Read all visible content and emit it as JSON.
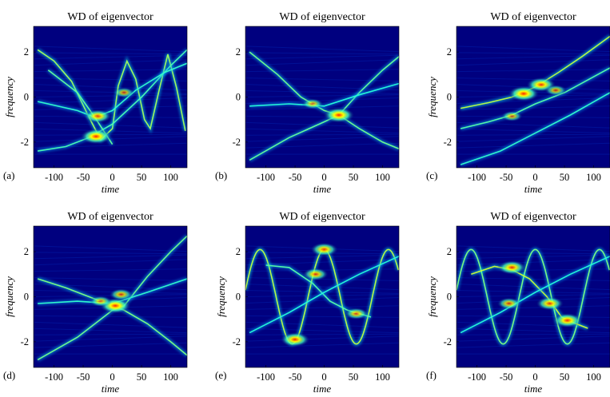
{
  "chart_data": [
    {
      "type": "heatmap",
      "panel_label": "(a)",
      "title": "WD of eigenvector",
      "xlabel": "time",
      "ylabel": "frequency",
      "xlim": [
        -135,
        128
      ],
      "ylim": [
        -3.14,
        3.14
      ],
      "xticks": [
        -100,
        -50,
        0,
        50,
        100
      ],
      "yticks": [
        2,
        0,
        -2
      ],
      "background": "#00007f",
      "curves": [
        {
          "kind": "line",
          "points": [
            [
              -128,
              2.1
            ],
            [
              -100,
              1.6
            ],
            [
              -70,
              0.7
            ],
            [
              -40,
              -0.9
            ],
            [
              -20,
              -1.9
            ],
            [
              0,
              -1.4
            ],
            [
              10,
              0.5
            ],
            [
              25,
              1.6
            ],
            [
              40,
              0.8
            ],
            [
              55,
              -1.0
            ],
            [
              65,
              -1.4
            ],
            [
              80,
              0.3
            ],
            [
              95,
              1.9
            ],
            [
              110,
              0.4
            ],
            [
              125,
              -1.5
            ]
          ],
          "intensity": 0.75
        },
        {
          "kind": "line",
          "points": [
            [
              -128,
              -2.4
            ],
            [
              -80,
              -2.2
            ],
            [
              -40,
              -1.8
            ],
            [
              0,
              -1.2
            ],
            [
              50,
              0.0
            ],
            [
              100,
              1.4
            ],
            [
              128,
              2.1
            ]
          ],
          "intensity": 0.4
        },
        {
          "kind": "line",
          "points": [
            [
              -128,
              -0.2
            ],
            [
              -60,
              -0.6
            ],
            [
              -30,
              -0.9
            ],
            [
              0,
              -0.6
            ],
            [
              40,
              0.3
            ],
            [
              90,
              1.1
            ],
            [
              128,
              1.5
            ]
          ],
          "intensity": 0.3
        },
        {
          "kind": "line",
          "points": [
            [
              -110,
              1.2
            ],
            [
              -60,
              0.2
            ],
            [
              -30,
              -0.9
            ],
            [
              0,
              -2.1
            ]
          ],
          "intensity": 0.5
        }
      ],
      "hotspots": [
        {
          "x": -28,
          "y": -1.75,
          "intensity": 1.0
        },
        {
          "x": -25,
          "y": -0.85,
          "intensity": 0.8
        },
        {
          "x": 20,
          "y": 0.2,
          "intensity": 0.45
        }
      ]
    },
    {
      "type": "heatmap",
      "panel_label": "(b)",
      "title": "WD of eigenvector",
      "xlabel": "time",
      "ylabel": "",
      "xlim": [
        -135,
        128
      ],
      "ylim": [
        -3.14,
        3.14
      ],
      "xticks": [
        -100,
        -50,
        0,
        50,
        100
      ],
      "yticks": [
        2,
        0,
        -2
      ],
      "background": "#00007f",
      "curves": [
        {
          "kind": "line",
          "points": [
            [
              -128,
              2.0
            ],
            [
              -80,
              1.0
            ],
            [
              -40,
              0.0
            ],
            [
              0,
              -0.6
            ],
            [
              25,
              -0.8
            ],
            [
              60,
              -1.4
            ],
            [
              100,
              -2.0
            ],
            [
              128,
              -2.3
            ]
          ],
          "intensity": 0.55
        },
        {
          "kind": "line",
          "points": [
            [
              -128,
              -2.8
            ],
            [
              -60,
              -1.8
            ],
            [
              0,
              -1.1
            ],
            [
              25,
              -0.8
            ],
            [
              60,
              0.2
            ],
            [
              100,
              1.2
            ],
            [
              128,
              1.8
            ]
          ],
          "intensity": 0.5
        },
        {
          "kind": "line",
          "points": [
            [
              -128,
              -0.4
            ],
            [
              -60,
              -0.3
            ],
            [
              0,
              -0.4
            ],
            [
              60,
              0.1
            ],
            [
              128,
              0.6
            ]
          ],
          "intensity": 0.25
        }
      ],
      "hotspots": [
        {
          "x": 25,
          "y": -0.8,
          "intensity": 1.0
        },
        {
          "x": -20,
          "y": -0.3,
          "intensity": 0.45
        }
      ]
    },
    {
      "type": "heatmap",
      "panel_label": "(c)",
      "title": "WD of eigenvector",
      "xlabel": "time",
      "ylabel": "frequency",
      "xlim": [
        -135,
        128
      ],
      "ylim": [
        -3.14,
        3.14
      ],
      "xticks": [
        -100,
        -50,
        0,
        50,
        100
      ],
      "yticks": [
        2,
        0,
        -2
      ],
      "background": "#00007f",
      "curves": [
        {
          "kind": "line",
          "points": [
            [
              -128,
              -0.5
            ],
            [
              -80,
              -0.25
            ],
            [
              -40,
              0.0
            ],
            [
              0,
              0.45
            ],
            [
              40,
              1.1
            ],
            [
              80,
              1.8
            ],
            [
              128,
              2.7
            ]
          ],
          "intensity": 0.85
        },
        {
          "kind": "line",
          "points": [
            [
              -128,
              -1.4
            ],
            [
              -80,
              -1.1
            ],
            [
              -40,
              -0.8
            ],
            [
              0,
              -0.3
            ],
            [
              50,
              0.2
            ],
            [
              100,
              0.9
            ],
            [
              128,
              1.3
            ]
          ],
          "intensity": 0.45
        },
        {
          "kind": "line",
          "points": [
            [
              -128,
              -3.0
            ],
            [
              -60,
              -2.4
            ],
            [
              0,
              -1.6
            ],
            [
              60,
              -0.8
            ],
            [
              128,
              0.2
            ]
          ],
          "intensity": 0.3
        }
      ],
      "hotspots": [
        {
          "x": -20,
          "y": 0.15,
          "intensity": 1.0
        },
        {
          "x": 10,
          "y": 0.55,
          "intensity": 0.9
        },
        {
          "x": 35,
          "y": 0.3,
          "intensity": 0.5
        },
        {
          "x": -40,
          "y": -0.85,
          "intensity": 0.45
        }
      ]
    },
    {
      "type": "heatmap",
      "panel_label": "(d)",
      "title": "WD of eigenvector",
      "xlabel": "time",
      "ylabel": "frequency",
      "xlim": [
        -135,
        128
      ],
      "ylim": [
        -3.14,
        3.14
      ],
      "xticks": [
        -100,
        -50,
        0,
        50,
        100
      ],
      "yticks": [
        2,
        0,
        -2
      ],
      "background": "#00007f",
      "curves": [
        {
          "kind": "line",
          "points": [
            [
              -128,
              0.8
            ],
            [
              -80,
              0.4
            ],
            [
              -40,
              0.0
            ],
            [
              0,
              -0.4
            ],
            [
              20,
              -0.6
            ],
            [
              60,
              -1.2
            ],
            [
              100,
              -2.0
            ],
            [
              128,
              -2.6
            ]
          ],
          "intensity": 0.6
        },
        {
          "kind": "line",
          "points": [
            [
              -128,
              -2.8
            ],
            [
              -60,
              -1.8
            ],
            [
              0,
              -0.6
            ],
            [
              20,
              -0.4
            ],
            [
              60,
              0.9
            ],
            [
              100,
              2.0
            ],
            [
              128,
              2.7
            ]
          ],
          "intensity": 0.55
        },
        {
          "kind": "line",
          "points": [
            [
              -128,
              -0.3
            ],
            [
              -60,
              -0.2
            ],
            [
              0,
              -0.3
            ],
            [
              60,
              0.2
            ],
            [
              128,
              0.8
            ]
          ],
          "intensity": 0.3
        }
      ],
      "hotspots": [
        {
          "x": 5,
          "y": -0.4,
          "intensity": 1.0
        },
        {
          "x": 15,
          "y": 0.1,
          "intensity": 0.6
        },
        {
          "x": -20,
          "y": -0.2,
          "intensity": 0.5
        }
      ]
    },
    {
      "type": "heatmap",
      "panel_label": "(e)",
      "title": "WD of eigenvector",
      "xlabel": "time",
      "ylabel": "frequency",
      "xlim": [
        -135,
        128
      ],
      "ylim": [
        -3.14,
        3.14
      ],
      "xticks": [
        -100,
        -50,
        0,
        50,
        100
      ],
      "yticks": [
        2,
        0,
        -2
      ],
      "background": "#00007f",
      "curves": [
        {
          "kind": "sine",
          "amp": 2.1,
          "offset": 0.0,
          "period": 110,
          "peakAt": 0,
          "intensity": 0.85
        },
        {
          "kind": "line",
          "points": [
            [
              -100,
              1.4
            ],
            [
              -60,
              1.3
            ],
            [
              -20,
              0.6
            ],
            [
              10,
              -0.2
            ],
            [
              40,
              -0.6
            ],
            [
              80,
              -0.9
            ]
          ],
          "intensity": 0.45
        },
        {
          "kind": "line",
          "points": [
            [
              -128,
              -1.6
            ],
            [
              -60,
              -0.7
            ],
            [
              0,
              0.2
            ],
            [
              60,
              1.0
            ],
            [
              128,
              1.8
            ]
          ],
          "intensity": 0.25
        }
      ],
      "hotspots": [
        {
          "x": -50,
          "y": -1.9,
          "intensity": 0.9
        },
        {
          "x": 0,
          "y": 2.1,
          "intensity": 0.8
        },
        {
          "x": -15,
          "y": 1.0,
          "intensity": 0.7
        },
        {
          "x": 55,
          "y": -0.75,
          "intensity": 0.6
        }
      ]
    },
    {
      "type": "heatmap",
      "panel_label": "(f)",
      "title": "WD of eigenvector",
      "xlabel": "time",
      "ylabel": "frequency",
      "xlim": [
        -135,
        128
      ],
      "ylim": [
        -3.14,
        3.14
      ],
      "xticks": [
        -100,
        -50,
        0,
        50,
        100
      ],
      "yticks": [
        2,
        0,
        -2
      ],
      "background": "#00007f",
      "curves": [
        {
          "kind": "sine",
          "amp": 2.1,
          "offset": 0.0,
          "period": 110,
          "peakAt": 0,
          "intensity": 0.6
        },
        {
          "kind": "line",
          "points": [
            [
              -110,
              1.0
            ],
            [
              -70,
              1.35
            ],
            [
              -40,
              1.2
            ],
            [
              -10,
              0.8
            ],
            [
              20,
              0.0
            ],
            [
              45,
              -0.9
            ],
            [
              60,
              -1.1
            ],
            [
              90,
              -1.4
            ]
          ],
          "intensity": 0.9
        },
        {
          "kind": "line",
          "points": [
            [
              -128,
              -1.6
            ],
            [
              -60,
              -0.7
            ],
            [
              0,
              0.2
            ],
            [
              60,
              1.0
            ],
            [
              128,
              1.8
            ]
          ],
          "intensity": 0.25
        }
      ],
      "hotspots": [
        {
          "x": -40,
          "y": 1.3,
          "intensity": 0.85
        },
        {
          "x": 25,
          "y": -0.3,
          "intensity": 0.8
        },
        {
          "x": 55,
          "y": -1.05,
          "intensity": 0.9
        },
        {
          "x": -45,
          "y": -0.3,
          "intensity": 0.6
        }
      ]
    }
  ]
}
